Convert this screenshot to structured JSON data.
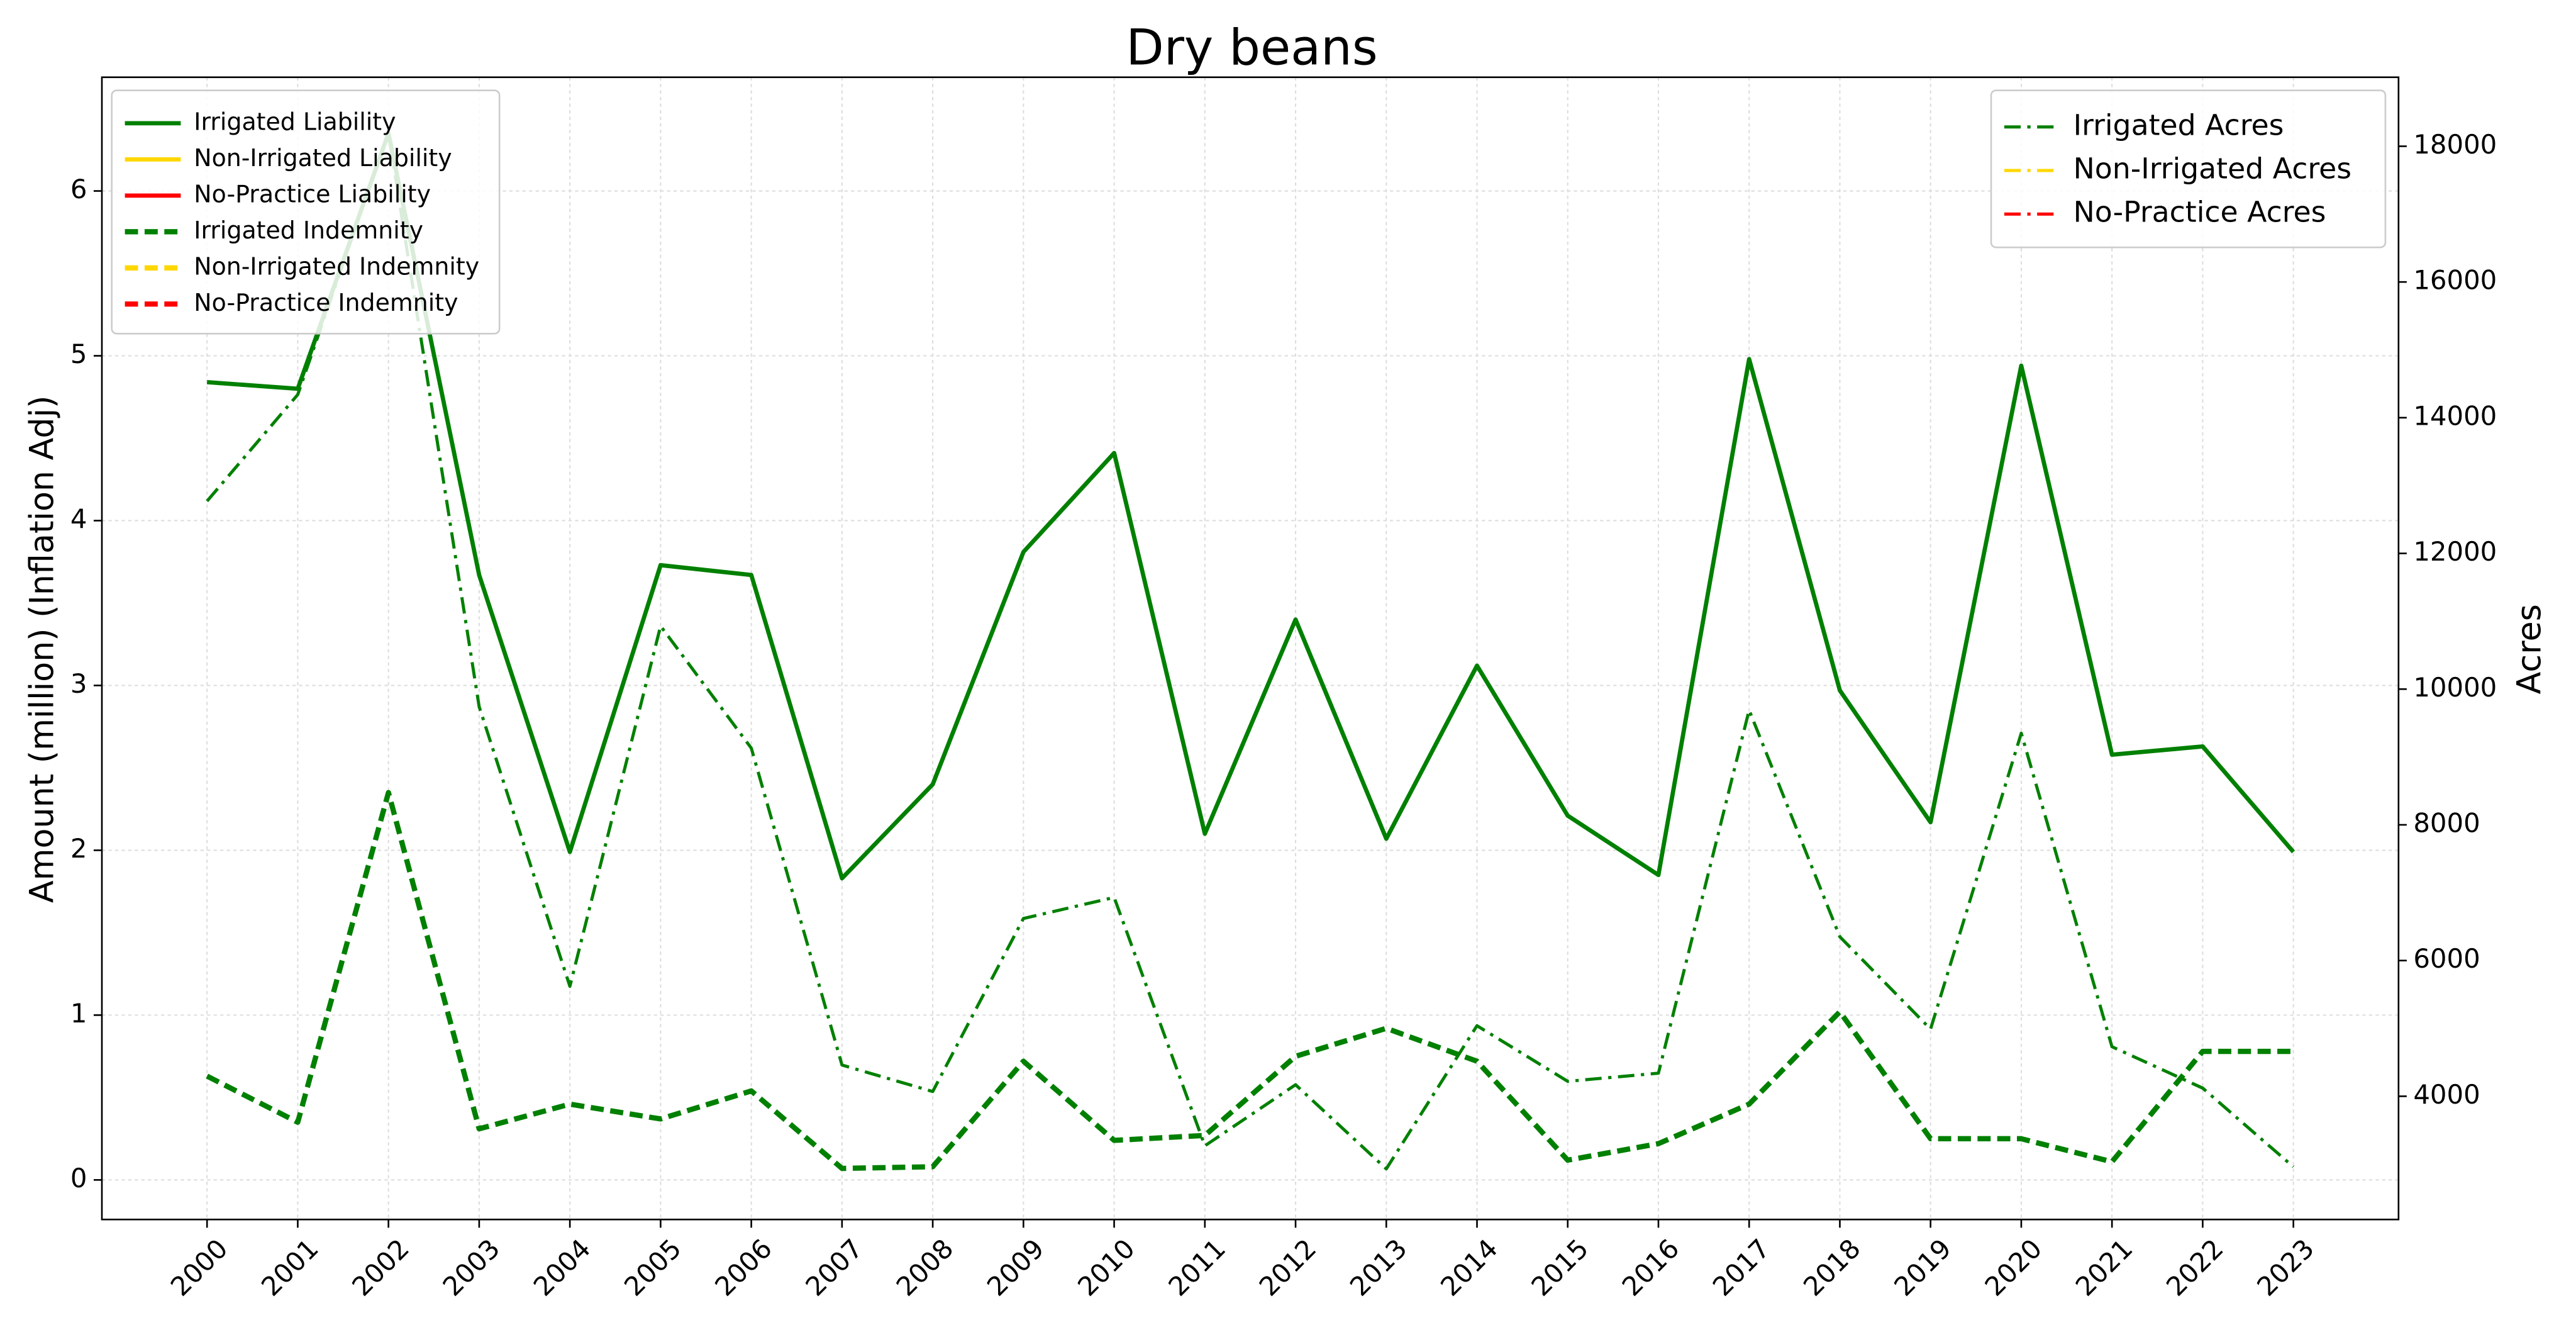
{
  "chart_data": {
    "type": "line",
    "title": "Dry beans",
    "ylabel": "Amount (million) (Inflation Adj)",
    "y2label": "Acres",
    "categories": [
      "2000",
      "2001",
      "2002",
      "2003",
      "2004",
      "2005",
      "2006",
      "2007",
      "2008",
      "2009",
      "2010",
      "2011",
      "2012",
      "2013",
      "2014",
      "2015",
      "2016",
      "2017",
      "2018",
      "2019",
      "2020",
      "2021",
      "2022",
      "2023"
    ],
    "ylim": [
      -0.24,
      6.69
    ],
    "yticks": [
      0,
      1,
      2,
      3,
      4,
      5,
      6
    ],
    "y2lim": [
      2184,
      19017
    ],
    "y2ticks": [
      4000,
      6000,
      8000,
      10000,
      12000,
      14000,
      16000,
      18000
    ],
    "grid": true,
    "legend": "upper left",
    "legend2": "upper right",
    "series": [
      {
        "name": "Irrigated Liability",
        "color": "#008000",
        "style": "solid",
        "axis": "y",
        "values": [
          4.84,
          4.8,
          6.35,
          3.67,
          1.99,
          3.73,
          3.67,
          1.83,
          2.4,
          3.81,
          4.41,
          2.1,
          3.4,
          2.07,
          3.12,
          2.21,
          1.85,
          4.98,
          2.97,
          2.17,
          4.94,
          2.58,
          2.63,
          1.99
        ]
      },
      {
        "name": "Non-Irrigated Liability",
        "color": "#ffd700",
        "style": "solid",
        "axis": "y",
        "values": [
          null,
          null,
          null,
          null,
          null,
          null,
          null,
          null,
          null,
          null,
          null,
          null,
          null,
          null,
          null,
          null,
          null,
          null,
          null,
          null,
          null,
          null,
          null,
          null
        ]
      },
      {
        "name": "No-Practice Liability",
        "color": "#ff0000",
        "style": "solid",
        "axis": "y",
        "values": [
          null,
          null,
          null,
          null,
          null,
          null,
          null,
          null,
          null,
          null,
          null,
          null,
          null,
          null,
          null,
          null,
          null,
          null,
          null,
          null,
          null,
          null,
          null,
          null
        ]
      },
      {
        "name": "Irrigated Indemnity",
        "color": "#008000",
        "style": "dashed",
        "axis": "y",
        "values": [
          0.63,
          0.35,
          2.35,
          0.31,
          0.46,
          0.37,
          0.54,
          0.07,
          0.08,
          0.72,
          0.24,
          0.27,
          0.75,
          0.92,
          0.72,
          0.12,
          0.22,
          0.46,
          1.02,
          0.25,
          0.25,
          0.11,
          0.78,
          0.78
        ]
      },
      {
        "name": "Non-Irrigated Indemnity",
        "color": "#ffd700",
        "style": "dashed",
        "axis": "y",
        "values": [
          null,
          null,
          null,
          null,
          null,
          null,
          null,
          null,
          null,
          null,
          null,
          null,
          null,
          null,
          null,
          null,
          null,
          null,
          null,
          null,
          null,
          null,
          null,
          null
        ]
      },
      {
        "name": "No-Practice Indemnity",
        "color": "#ff0000",
        "style": "dashed",
        "axis": "y",
        "values": [
          null,
          null,
          null,
          null,
          null,
          null,
          null,
          null,
          null,
          null,
          null,
          null,
          null,
          null,
          null,
          null,
          null,
          null,
          null,
          null,
          null,
          null,
          null,
          null
        ]
      },
      {
        "name": "Irrigated Acres",
        "color": "#008000",
        "style": "dashdot",
        "axis": "y2",
        "values": [
          12770,
          14340,
          18200,
          9740,
          5620,
          10930,
          9130,
          4460,
          4070,
          6620,
          6930,
          3270,
          4170,
          2930,
          5040,
          4220,
          4340,
          9690,
          6350,
          4990,
          9350,
          4730,
          4120,
          2960
        ]
      },
      {
        "name": "Non-Irrigated Acres",
        "color": "#ffd700",
        "style": "dashdot",
        "axis": "y2",
        "values": [
          null,
          null,
          null,
          null,
          null,
          null,
          null,
          null,
          null,
          null,
          null,
          null,
          null,
          null,
          null,
          null,
          null,
          null,
          null,
          null,
          null,
          null,
          null,
          null
        ]
      },
      {
        "name": "No-Practice Acres",
        "color": "#ff0000",
        "style": "dashdot",
        "axis": "y2",
        "values": [
          null,
          null,
          null,
          null,
          null,
          null,
          null,
          null,
          null,
          null,
          null,
          null,
          null,
          null,
          null,
          null,
          null,
          null,
          null,
          null,
          null,
          null,
          null,
          null
        ]
      }
    ]
  }
}
